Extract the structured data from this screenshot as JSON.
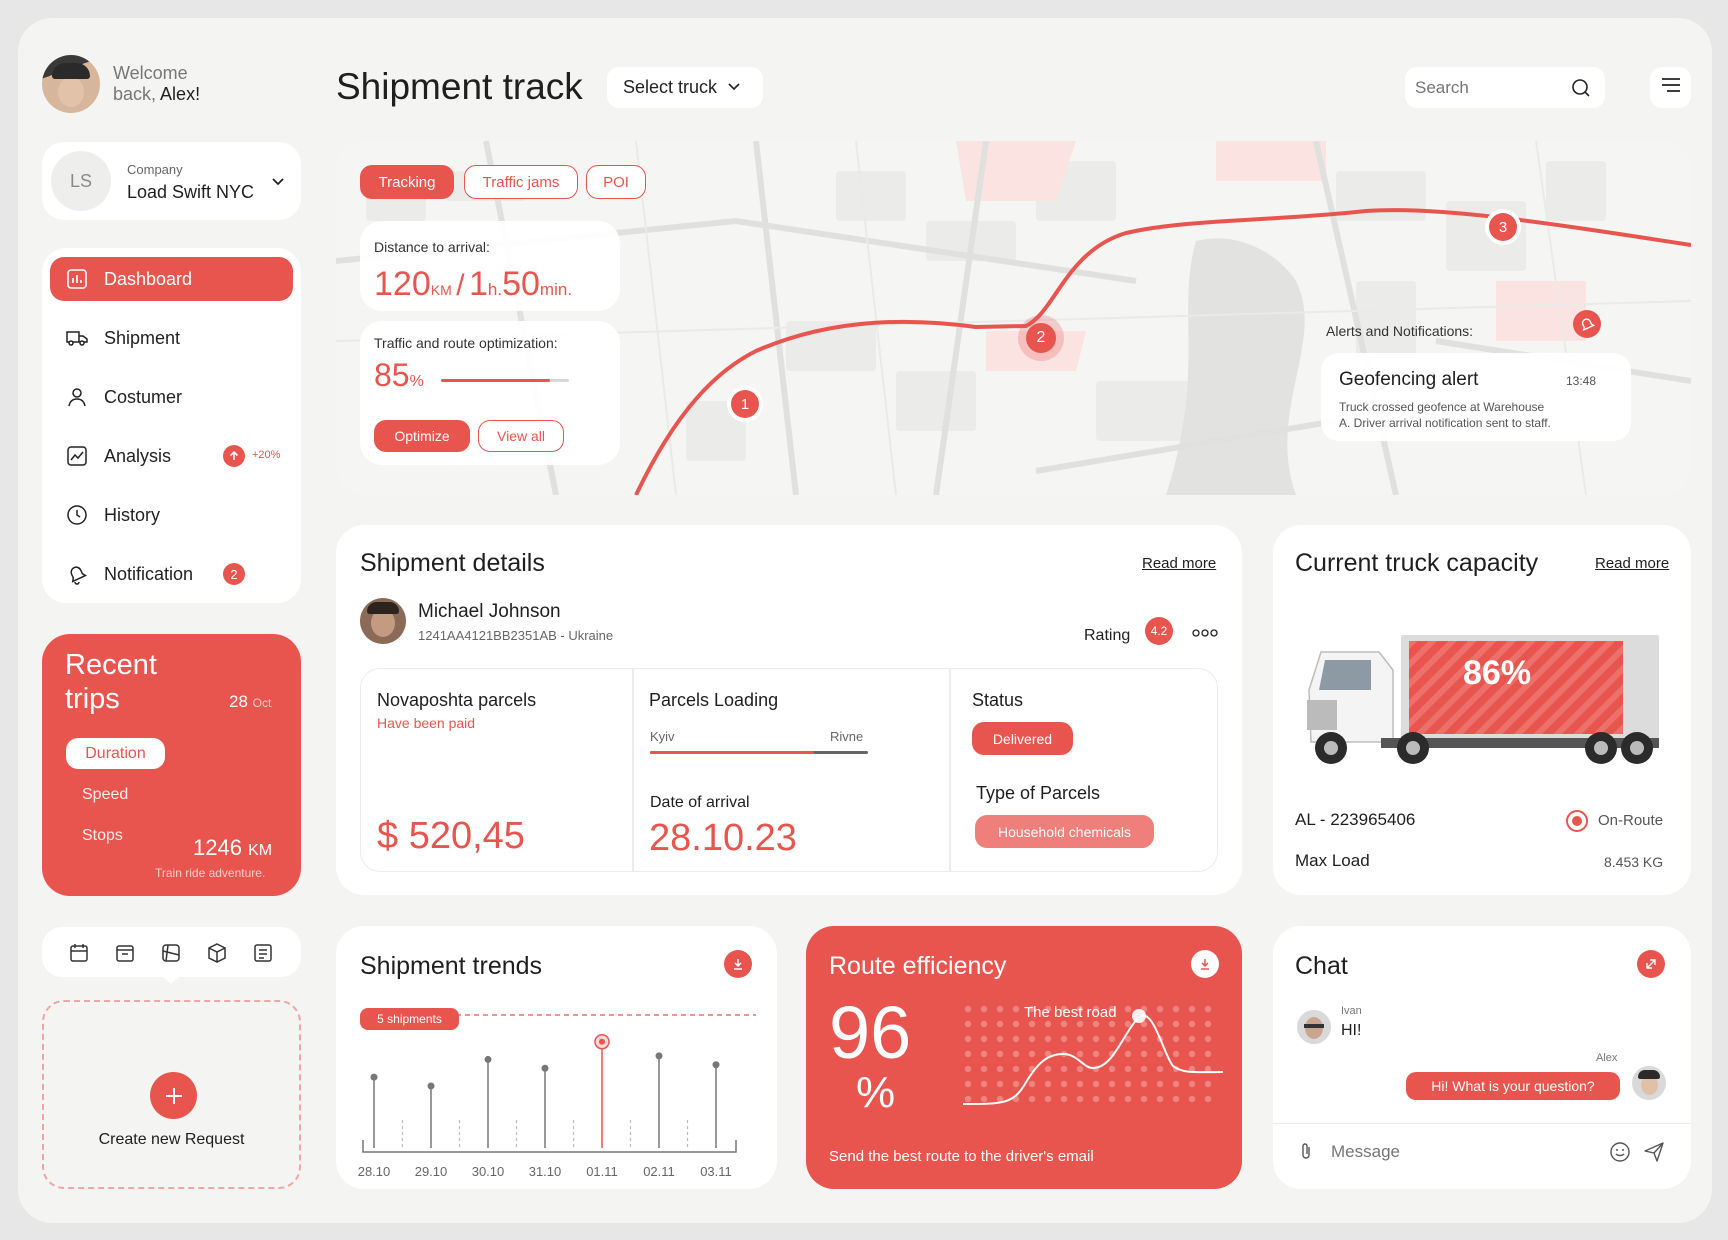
{
  "user": {
    "welcome_line1": "Welcome",
    "welcome_line2": "back,",
    "name": "Alex!"
  },
  "company": {
    "label": "Company",
    "name": "Load Swift NYC",
    "initials": "LS"
  },
  "sidebar": {
    "items": [
      {
        "label": "Dashboard",
        "icon": "bar-chart-icon"
      },
      {
        "label": "Shipment",
        "icon": "truck-icon"
      },
      {
        "label": "Costumer",
        "icon": "user-icon"
      },
      {
        "label": "Analysis",
        "icon": "line-chart-icon",
        "badge": "+20%"
      },
      {
        "label": "History",
        "icon": "clock-icon"
      },
      {
        "label": "Notification",
        "icon": "bell-icon",
        "badge": "2"
      }
    ]
  },
  "recent_trips": {
    "title_line1": "Recent",
    "title_line2": "trips",
    "date_day": "28",
    "date_month": "Oct",
    "tabs": [
      "Duration",
      "Speed",
      "Stops"
    ],
    "distance_value": "1246",
    "distance_unit": "KM",
    "note": "Train ride adventure."
  },
  "create_request": {
    "label": "Create new Request"
  },
  "header": {
    "title": "Shipment track",
    "select_truck": "Select truck",
    "search_placeholder": "Search"
  },
  "map": {
    "tabs": [
      "Tracking",
      "Traffic jams",
      "POI"
    ],
    "distance_label": "Distance to arrival:",
    "distance_km": "120",
    "distance_km_unit": "KM",
    "sep": "/",
    "time_h": "1",
    "time_h_unit": "h.",
    "time_min": "50",
    "time_min_unit": "min.",
    "optimization_label": "Traffic and route optimization:",
    "optimization_value": "85",
    "optimization_unit": "%",
    "optimization_fraction": 0.85,
    "optimize_btn": "Optimize",
    "view_all_btn": "View all",
    "markers": [
      "1",
      "2",
      "3"
    ],
    "alerts_label": "Alerts and Notifications:",
    "alert_title": "Geofencing alert",
    "alert_time": "13:48",
    "alert_text_line1": "Truck crossed geofence at Warehouse",
    "alert_text_line2": "A. Driver arrival notification sent to staff."
  },
  "shipment_details": {
    "title": "Shipment details",
    "read_more": "Read more",
    "person_name": "Michael Johnson",
    "person_id": "1241AA4121BB2351AB - Ukraine",
    "rating_label": "Rating",
    "rating_value": "4.2",
    "parcels_title": "Novaposhta parcels",
    "parcels_status": "Have been paid",
    "price": "$ 520,45",
    "loading_title": "Parcels Loading",
    "from": "Kyiv",
    "to": "Rivne",
    "arrival_label": "Date of arrival",
    "arrival_date": "28.10.23",
    "status_label": "Status",
    "status_value": "Delivered",
    "type_label": "Type of Parcels",
    "type_value": "Household chemicals"
  },
  "capacity": {
    "title": "Current truck capacity",
    "read_more": "Read more",
    "percent": "86%",
    "truck_id": "AL - 223965406",
    "route_status": "On-Route",
    "max_load_label": "Max Load",
    "max_load_value": "8.453 KG"
  },
  "trends": {
    "title": "Shipment trends",
    "badge": "5 shipments",
    "x_labels": [
      "28.10",
      "29.10",
      "30.10",
      "31.10",
      "01.11",
      "02.11",
      "03.11"
    ]
  },
  "efficiency": {
    "title": "Route efficiency",
    "value": "96",
    "unit": "%",
    "best_road": "The best road",
    "footer": "Send the best route to the driver's email"
  },
  "chat": {
    "title": "Chat",
    "msg1_author": "Ivan",
    "msg1_text": "HI!",
    "msg2_author": "Alex",
    "msg2_text": "Hi! What is your question?",
    "input_placeholder": "Message"
  },
  "chart_data": {
    "type": "scatter",
    "categories": [
      "28.10",
      "29.10",
      "30.10",
      "31.10",
      "01.11",
      "02.11",
      "03.11"
    ],
    "values": [
      4,
      3.5,
      5,
      4.5,
      6,
      5.2,
      4.7
    ],
    "highlight_index": 4
  }
}
